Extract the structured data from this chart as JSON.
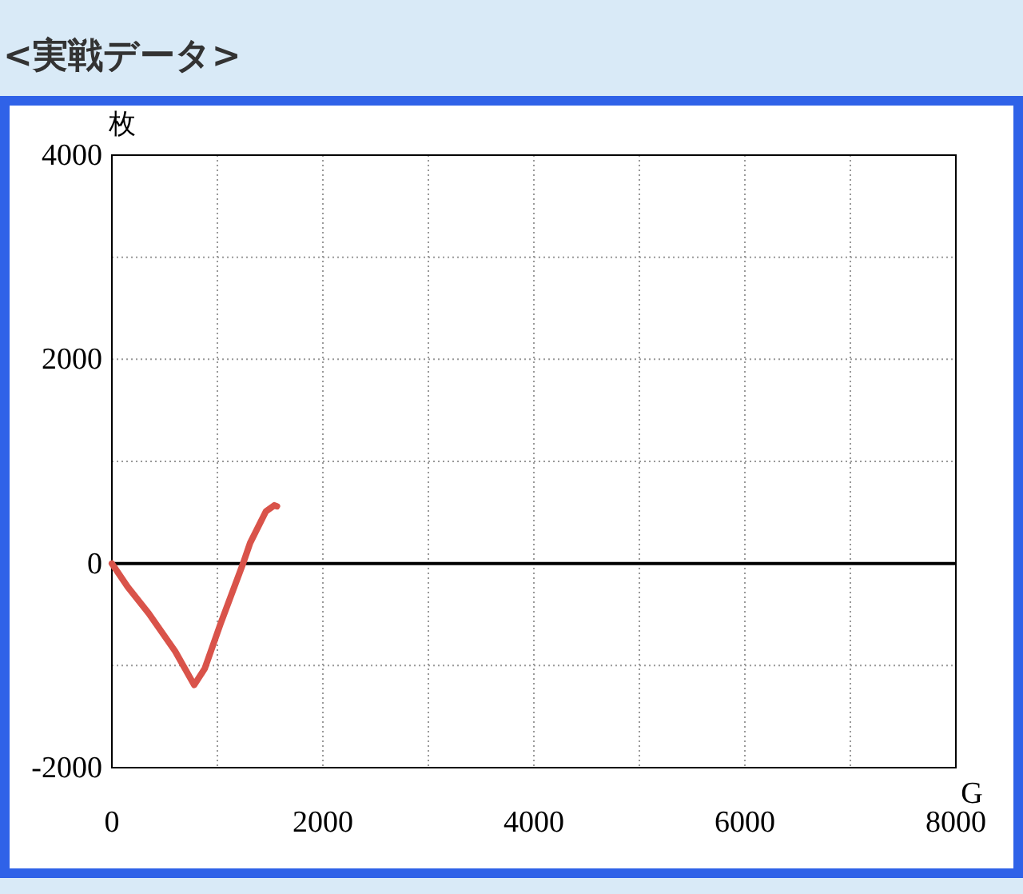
{
  "chart_data": {
    "type": "line",
    "title": "<実戦データ>",
    "xlabel": "G",
    "ylabel": "枚",
    "x": [
      0,
      150,
      350,
      600,
      780,
      880,
      1030,
      1240,
      1310,
      1460,
      1540,
      1565
    ],
    "series": [
      {
        "color": "#d9534a",
        "values": [
          0,
          -230,
          -490,
          -860,
          -1190,
          -1030,
          -590,
          -10,
          200,
          510,
          570,
          560
        ]
      }
    ],
    "xlim": [
      0,
      8000
    ],
    "ylim": [
      -2000,
      4000
    ],
    "xticks": [
      0,
      {
        "value": 1000,
        "label": null
      },
      2000,
      {
        "value": 3000,
        "label": null
      },
      4000,
      {
        "value": 5000,
        "label": null
      },
      6000,
      {
        "value": 7000,
        "label": null
      },
      8000
    ],
    "yticks": [
      -2000,
      {
        "value": -1000,
        "label": null
      },
      0,
      {
        "value": 1000,
        "label": null
      },
      2000,
      {
        "value": 3000,
        "label": null
      },
      4000
    ],
    "grid": true,
    "marker": "none",
    "line_style": "solid",
    "ref_lines": [
      {
        "axis": "y",
        "value": 0,
        "color": "#000000"
      }
    ]
  }
}
